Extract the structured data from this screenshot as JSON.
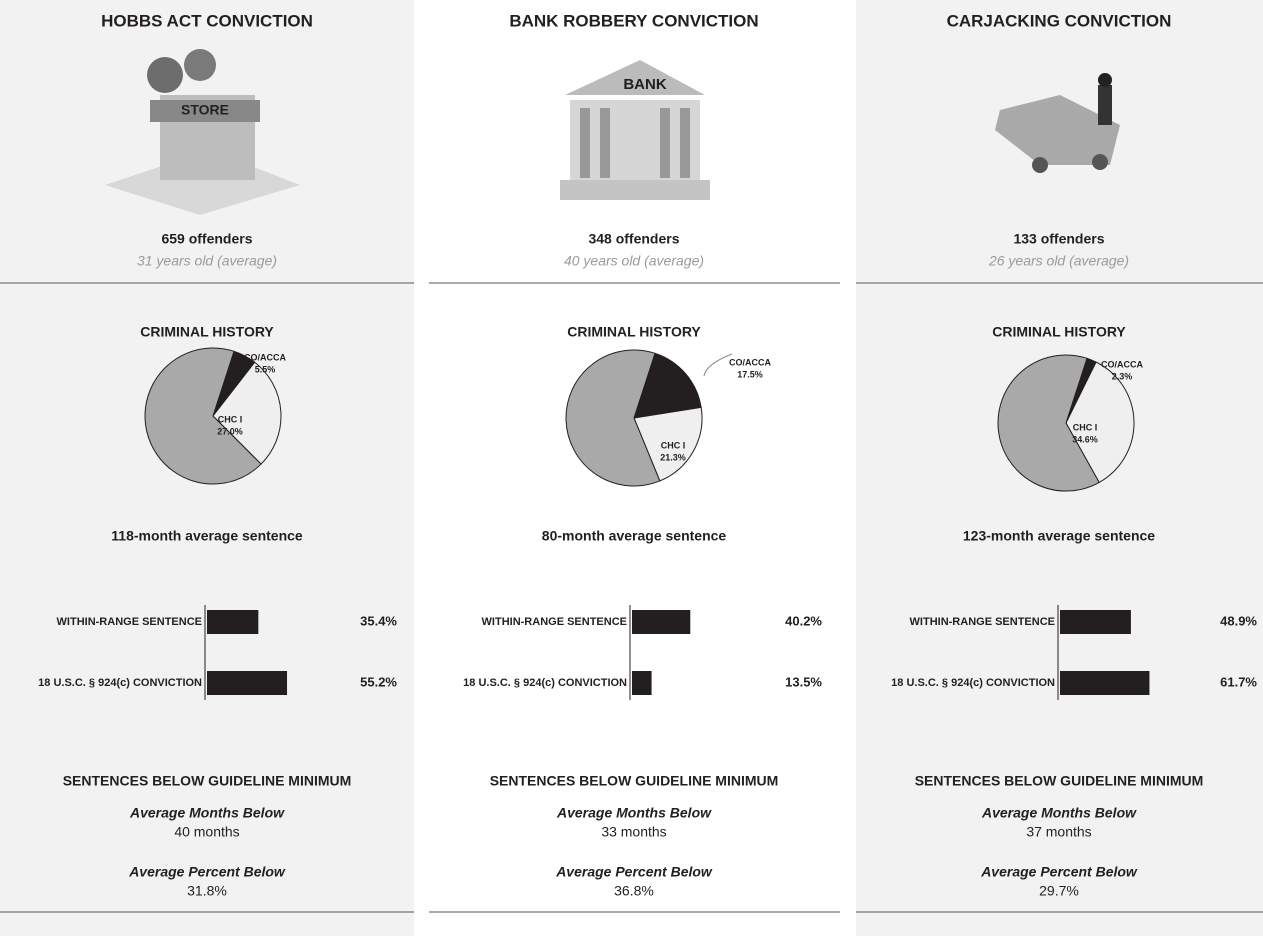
{
  "panels": [
    {
      "title": "HOBBS ACT CONVICTION",
      "offenders": "659 offenders",
      "age": "31 years old (average)",
      "sentence": "118-month average sentence",
      "below_title": "SENTENCES BELOW GUIDELINE MINIMUM",
      "months_label": "Average Months Below",
      "months": "40 months",
      "percent_label": "Average Percent Below",
      "percent": "31.8%"
    },
    {
      "title": "BANK ROBBERY CONVICTION",
      "offenders": "348 offenders",
      "age": "40 years old (average)",
      "sentence": "80-month average sentence",
      "below_title": "SENTENCES BELOW GUIDELINE MINIMUM",
      "months_label": "Average Months Below",
      "months": "33 months",
      "percent_label": "Average Percent Below",
      "percent": "36.8%"
    },
    {
      "title": "CARJACKING CONVICTION",
      "offenders": "133 offenders",
      "age": "26 years old (average)",
      "sentence": "123-month average sentence",
      "below_title": "SENTENCES BELOW GUIDELINE MINIMUM",
      "months_label": "Average Months Below",
      "months": "37 months",
      "percent_label": "Average Percent Below",
      "percent": "29.7%"
    }
  ],
  "chart_data": [
    {
      "type": "pie",
      "title": "CRIMINAL HISTORY",
      "categories": [
        "CO/ACCA",
        "CHC I",
        null
      ],
      "values": [
        5.5,
        27.0,
        67.5
      ],
      "value_labels": [
        "5.5%",
        "27.0%",
        null
      ],
      "colors": [
        "#231f20",
        "#efefef",
        "#a9a9a9"
      ]
    },
    {
      "type": "bar",
      "categories": [
        "WITHIN-RANGE SENTENCE",
        "18 U.S.C. § 924(c) CONVICTION"
      ],
      "values": [
        35.4,
        55.2
      ],
      "value_labels": [
        "35.4%",
        "55.2%"
      ],
      "color": "#231f20",
      "xlim": [
        0,
        100
      ]
    },
    {
      "type": "pie",
      "title": "CRIMINAL HISTORY",
      "categories": [
        "CO/ACCA",
        "CHC I",
        null
      ],
      "values": [
        17.5,
        21.3,
        61.2
      ],
      "value_labels": [
        "17.5%",
        "21.3%",
        null
      ],
      "colors": [
        "#231f20",
        "#efefef",
        "#a9a9a9"
      ]
    },
    {
      "type": "bar",
      "categories": [
        "WITHIN-RANGE SENTENCE",
        "18 U.S.C. § 924(c) CONVICTION"
      ],
      "values": [
        40.2,
        13.5
      ],
      "value_labels": [
        "40.2%",
        "13.5%"
      ],
      "color": "#231f20",
      "xlim": [
        0,
        100
      ]
    },
    {
      "type": "pie",
      "title": "CRIMINAL HISTORY",
      "categories": [
        "CO/ACCA",
        "CHC I",
        null
      ],
      "values": [
        2.3,
        34.6,
        63.1
      ],
      "value_labels": [
        "2.3%",
        "34.6%",
        null
      ],
      "colors": [
        "#231f20",
        "#efefef",
        "#a9a9a9"
      ]
    },
    {
      "type": "bar",
      "categories": [
        "WITHIN-RANGE SENTENCE",
        "18 U.S.C. § 924(c) CONVICTION"
      ],
      "values": [
        48.9,
        61.7
      ],
      "value_labels": [
        "48.9%",
        "61.7%"
      ],
      "color": "#231f20",
      "xlim": [
        0,
        100
      ]
    }
  ]
}
